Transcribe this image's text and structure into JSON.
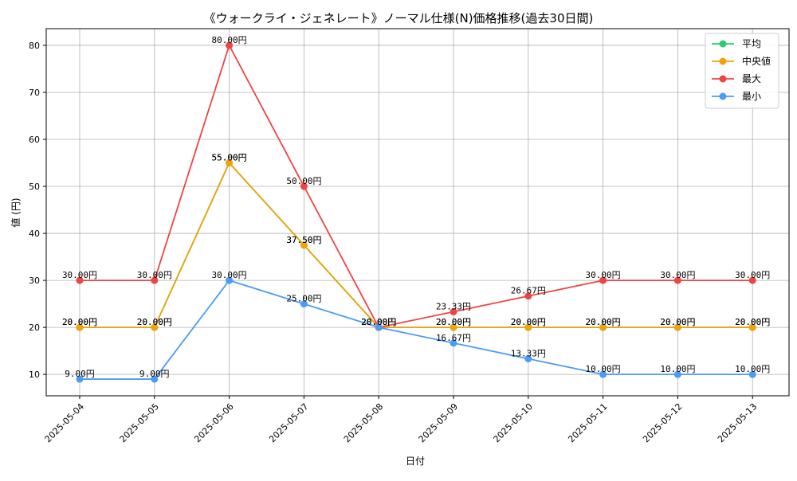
{
  "chart_data": {
    "type": "line",
    "title": "《ウォークライ・ジェネレート》ノーマル仕様(N)価格推移(過去30日間)",
    "xlabel": "日付",
    "ylabel": "値 (円)",
    "categories": [
      "2025-05-04",
      "2025-05-05",
      "2025-05-06",
      "2025-05-07",
      "2025-05-08",
      "2025-05-09",
      "2025-05-10",
      "2025-05-11",
      "2025-05-12",
      "2025-05-13"
    ],
    "ylim": [
      5.45,
      83.55
    ],
    "yticks": [
      10,
      20,
      30,
      40,
      50,
      60,
      70,
      80
    ],
    "grid": true,
    "legend_position": "top-right",
    "value_suffix": "円",
    "series": [
      {
        "name": "平均",
        "color": "#2ecc71",
        "values": [
          20,
          20,
          55,
          37.5,
          20,
          20,
          20,
          20,
          20,
          20
        ]
      },
      {
        "name": "中央値",
        "color": "#f0a30a",
        "values": [
          20,
          20,
          55,
          37.5,
          20,
          20,
          20,
          20,
          20,
          20
        ]
      },
      {
        "name": "最大",
        "color": "#ef4444",
        "values": [
          30,
          30,
          80,
          50,
          20,
          23.33,
          26.67,
          30,
          30,
          30
        ]
      },
      {
        "name": "最小",
        "color": "#4b9cf5",
        "values": [
          9,
          9,
          30,
          25,
          20,
          16.67,
          13.33,
          10,
          10,
          10
        ]
      }
    ]
  }
}
